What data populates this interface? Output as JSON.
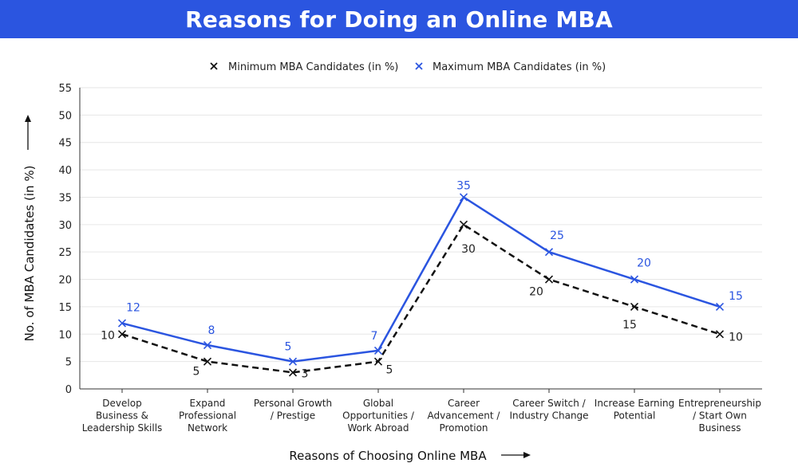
{
  "title": "Reasons for Doing an Online MBA",
  "colors": {
    "title_bar": "#2b55e0",
    "min_series": "#111111",
    "max_series": "#2b55e0",
    "grid": "#e6e6e6"
  },
  "chart_data": {
    "type": "line",
    "title": "Reasons for Doing an Online MBA",
    "xlabel": "Reasons of Choosing Online MBA",
    "ylabel": "No. of MBA Candidates (in %)",
    "ylim": [
      0,
      55
    ],
    "yticks": [
      0,
      5,
      10,
      15,
      20,
      25,
      30,
      35,
      40,
      45,
      50,
      55
    ],
    "grid": true,
    "legend_position": "top-center",
    "categories": [
      [
        "Develop",
        "Business &",
        "Leadership Skills"
      ],
      [
        "Expand",
        "Professional",
        "Network"
      ],
      [
        "Personal Growth",
        "/ Prestige"
      ],
      [
        "Global",
        "Opportunities /",
        "Work Abroad"
      ],
      [
        "Career",
        "Advancement /",
        "Promotion"
      ],
      [
        "Career Switch /",
        "Industry Change"
      ],
      [
        "Increase Earning",
        "Potential"
      ],
      [
        "Entrepreneurship",
        "/ Start Own",
        "Business"
      ]
    ],
    "series": [
      {
        "name": "Minimum MBA Candidates (in %)",
        "values": [
          10,
          5,
          3,
          5,
          30,
          20,
          15,
          10
        ],
        "style": "dashed",
        "marker": "x",
        "color": "#111111"
      },
      {
        "name": "Maximum MBA Candidates (in %)",
        "values": [
          12,
          8,
          5,
          7,
          35,
          25,
          20,
          15
        ],
        "style": "solid",
        "marker": "x",
        "color": "#2b55e0"
      }
    ]
  }
}
